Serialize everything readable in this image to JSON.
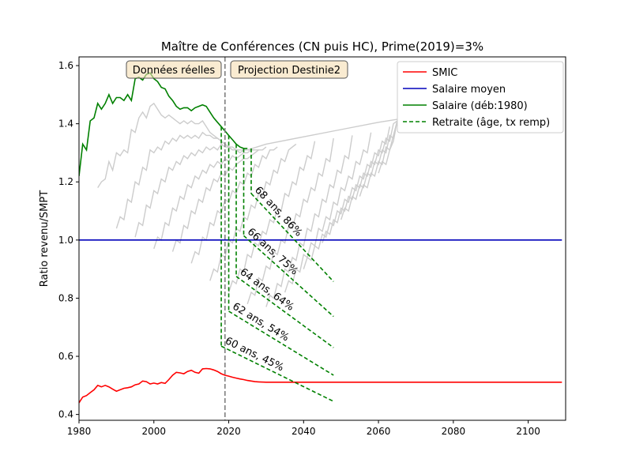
{
  "chart_data": {
    "type": "line",
    "title": "Maître de Conférences (CN puis HC), Prime(2019)=3%",
    "xlabel": "",
    "ylabel": "Ratio revenu/SMPT",
    "xlim": [
      1980,
      2110
    ],
    "ylim": [
      0.38,
      1.63
    ],
    "x_ticks": [
      1980,
      2000,
      2020,
      2040,
      2060,
      2080,
      2100
    ],
    "y_ticks": [
      0.4,
      0.6,
      0.8,
      1.0,
      1.2,
      1.4,
      1.6
    ],
    "y_tick_labels": [
      "0.4",
      "0.6",
      "0.8",
      "1.0",
      "1.2",
      "1.4",
      "1.6"
    ],
    "vline_year": 2019,
    "colors": {
      "smic": "#ff0000",
      "salaire_moyen": "#0000bb",
      "salaire": "#008000",
      "retraite": "#008000",
      "gray": "#cccccc",
      "vline": "#808080"
    },
    "annotations": {
      "left_box": "Données réelles",
      "right_box": "Projection Destinie2"
    },
    "legend": {
      "placement": "top-right",
      "entries": [
        {
          "label": "SMIC",
          "color": "#ff0000",
          "style": "solid"
        },
        {
          "label": "Salaire moyen",
          "color": "#0000bb",
          "style": "solid"
        },
        {
          "label": "Salaire (déb:1980)",
          "color": "#008000",
          "style": "solid"
        },
        {
          "label": "Retraite (âge, tx remp)",
          "color": "#008000",
          "style": "dashed"
        }
      ]
    },
    "series": [
      {
        "name": "SMIC",
        "x": [
          1980,
          1981,
          1982,
          1983,
          1984,
          1985,
          1986,
          1987,
          1988,
          1989,
          1990,
          1991,
          1992,
          1993,
          1994,
          1995,
          1996,
          1997,
          1998,
          1999,
          2000,
          2001,
          2002,
          2003,
          2004,
          2005,
          2006,
          2007,
          2008,
          2009,
          2010,
          2011,
          2012,
          2013,
          2014,
          2015,
          2016,
          2017,
          2018,
          2019,
          2020,
          2021,
          2022,
          2023,
          2024,
          2025,
          2026,
          2027,
          2028,
          2030,
          2035,
          2040,
          2050,
          2060,
          2070,
          2080,
          2090,
          2100,
          2109
        ],
        "y": [
          0.44,
          0.46,
          0.465,
          0.475,
          0.485,
          0.5,
          0.495,
          0.5,
          0.495,
          0.487,
          0.48,
          0.485,
          0.49,
          0.492,
          0.495,
          0.502,
          0.505,
          0.515,
          0.513,
          0.505,
          0.508,
          0.505,
          0.51,
          0.507,
          0.52,
          0.535,
          0.545,
          0.543,
          0.54,
          0.548,
          0.552,
          0.545,
          0.542,
          0.557,
          0.558,
          0.557,
          0.553,
          0.548,
          0.54,
          0.535,
          0.532,
          0.528,
          0.525,
          0.522,
          0.52,
          0.517,
          0.515,
          0.513,
          0.512,
          0.511,
          0.511,
          0.511,
          0.511,
          0.511,
          0.511,
          0.511,
          0.511,
          0.511,
          0.511
        ]
      },
      {
        "name": "Salaire moyen",
        "x": [
          1980,
          2109
        ],
        "y": [
          1.0,
          1.0
        ]
      },
      {
        "name": "Salaire (déb:1980)",
        "x": [
          1980,
          1981,
          1982,
          1983,
          1984,
          1985,
          1986,
          1987,
          1988,
          1989,
          1990,
          1991,
          1992,
          1993,
          1994,
          1995,
          1996,
          1997,
          1998,
          1999,
          2000,
          2001,
          2002,
          2003,
          2004,
          2005,
          2006,
          2007,
          2008,
          2009,
          2010,
          2011,
          2012,
          2013,
          2014,
          2015,
          2016,
          2017,
          2018,
          2019,
          2020,
          2021,
          2022,
          2023,
          2024,
          2025
        ],
        "y": [
          1.22,
          1.33,
          1.31,
          1.41,
          1.42,
          1.47,
          1.45,
          1.47,
          1.5,
          1.47,
          1.49,
          1.49,
          1.48,
          1.5,
          1.48,
          1.555,
          1.56,
          1.55,
          1.57,
          1.575,
          1.555,
          1.545,
          1.525,
          1.52,
          1.495,
          1.48,
          1.46,
          1.45,
          1.455,
          1.455,
          1.445,
          1.455,
          1.46,
          1.465,
          1.46,
          1.44,
          1.42,
          1.405,
          1.39,
          1.375,
          1.36,
          1.345,
          1.33,
          1.32,
          1.315,
          1.315
        ]
      }
    ],
    "gray_curves": [
      {
        "x": [
          1985,
          1986,
          1987,
          1988,
          1989,
          1990,
          1991,
          1992,
          1993,
          1994,
          1995,
          1996,
          1997,
          1998,
          1999,
          2000,
          2001,
          2002,
          2003,
          2004,
          2005,
          2006,
          2007,
          2008,
          2009,
          2010,
          2011,
          2012,
          2013,
          2014,
          2015,
          2016,
          2017,
          2018,
          2019,
          2020,
          2021,
          2022,
          2023,
          2024,
          2025,
          2030,
          2040,
          2050,
          2060,
          2065
        ],
        "y": [
          1.18,
          1.2,
          1.21,
          1.27,
          1.24,
          1.3,
          1.29,
          1.31,
          1.3,
          1.38,
          1.37,
          1.42,
          1.44,
          1.42,
          1.46,
          1.47,
          1.45,
          1.43,
          1.42,
          1.43,
          1.42,
          1.41,
          1.4,
          1.41,
          1.4,
          1.41,
          1.4,
          1.4,
          1.41,
          1.39,
          1.37,
          1.36,
          1.35,
          1.34,
          1.33,
          1.32,
          1.31,
          1.31,
          1.31,
          1.31,
          1.31,
          1.33,
          1.355,
          1.38,
          1.405,
          1.415
        ]
      },
      {
        "x": [
          1990,
          1991,
          1992,
          1993,
          1994,
          1995,
          1996,
          1997,
          1998,
          1999,
          2000,
          2001,
          2002,
          2003,
          2004,
          2005,
          2006,
          2007,
          2008,
          2009,
          2010,
          2011,
          2012,
          2013,
          2014,
          2015,
          2016,
          2017,
          2018,
          2019,
          2020,
          2021,
          2022,
          2023,
          2024,
          2025,
          2026
        ],
        "y": [
          1.04,
          1.08,
          1.07,
          1.14,
          1.13,
          1.2,
          1.19,
          1.25,
          1.24,
          1.31,
          1.3,
          1.32,
          1.31,
          1.34,
          1.33,
          1.35,
          1.34,
          1.36,
          1.35,
          1.36,
          1.35,
          1.36,
          1.35,
          1.37,
          1.36,
          1.36,
          1.35,
          1.35,
          1.34,
          1.33,
          1.32,
          1.32,
          1.31,
          1.31,
          1.31,
          1.31,
          1.31
        ]
      },
      {
        "x": [
          1995,
          1996,
          1997,
          1998,
          1999,
          2000,
          2001,
          2002,
          2003,
          2004,
          2005,
          2006,
          2007,
          2008,
          2009,
          2010,
          2011,
          2012,
          2013,
          2014,
          2015,
          2016,
          2017,
          2018,
          2019,
          2020,
          2021,
          2022,
          2023,
          2024,
          2025,
          2026,
          2027
        ],
        "y": [
          1.01,
          1.06,
          1.05,
          1.12,
          1.11,
          1.17,
          1.16,
          1.21,
          1.2,
          1.25,
          1.24,
          1.27,
          1.26,
          1.29,
          1.28,
          1.3,
          1.29,
          1.31,
          1.3,
          1.32,
          1.31,
          1.32,
          1.31,
          1.33,
          1.32,
          1.32,
          1.31,
          1.31,
          1.3,
          1.31,
          1.31,
          1.31,
          1.31
        ]
      },
      {
        "x": [
          2000,
          2001,
          2002,
          2003,
          2004,
          2005,
          2006,
          2007,
          2008,
          2009,
          2010,
          2011,
          2012,
          2013,
          2014,
          2015,
          2016,
          2017,
          2018,
          2019,
          2020,
          2021,
          2022,
          2023,
          2024,
          2025,
          2026,
          2027,
          2028
        ],
        "y": [
          0.97,
          1.01,
          1.0,
          1.06,
          1.05,
          1.11,
          1.1,
          1.15,
          1.14,
          1.19,
          1.18,
          1.22,
          1.21,
          1.24,
          1.23,
          1.26,
          1.25,
          1.27,
          1.26,
          1.28,
          1.27,
          1.29,
          1.28,
          1.29,
          1.3,
          1.3,
          1.31,
          1.31,
          1.31
        ]
      },
      {
        "x": [
          2005,
          2006,
          2007,
          2008,
          2009,
          2010,
          2011,
          2012,
          2013,
          2014,
          2015,
          2016,
          2017,
          2018,
          2019,
          2020,
          2021,
          2022,
          2023,
          2024,
          2025,
          2026,
          2027,
          2028,
          2029,
          2030
        ],
        "y": [
          0.96,
          1.0,
          0.99,
          1.05,
          1.04,
          1.1,
          1.09,
          1.14,
          1.13,
          1.18,
          1.17,
          1.21,
          1.2,
          1.23,
          1.22,
          1.25,
          1.24,
          1.26,
          1.27,
          1.28,
          1.28,
          1.29,
          1.3,
          1.31,
          1.31,
          1.32
        ]
      },
      {
        "x": [
          2010,
          2011,
          2012,
          2013,
          2014,
          2015,
          2016,
          2017,
          2018,
          2019,
          2020,
          2021,
          2022,
          2023,
          2024,
          2025,
          2026,
          2027,
          2028,
          2029,
          2030,
          2031,
          2032,
          2033
        ],
        "y": [
          0.92,
          0.96,
          0.95,
          1.01,
          1.0,
          1.06,
          1.05,
          1.1,
          1.09,
          1.14,
          1.13,
          1.17,
          1.16,
          1.2,
          1.19,
          1.23,
          1.22,
          1.26,
          1.25,
          1.29,
          1.28,
          1.31,
          1.31,
          1.32
        ]
      },
      {
        "x": [
          2015,
          2016,
          2017,
          2018,
          2019,
          2020,
          2021,
          2022,
          2023,
          2024,
          2025,
          2026,
          2027,
          2028,
          2029,
          2030,
          2031,
          2032,
          2033,
          2034,
          2035,
          2036,
          2037,
          2038
        ],
        "y": [
          0.86,
          0.9,
          0.89,
          0.95,
          0.94,
          1.0,
          0.99,
          1.04,
          1.03,
          1.08,
          1.07,
          1.12,
          1.11,
          1.16,
          1.15,
          1.2,
          1.19,
          1.24,
          1.23,
          1.28,
          1.27,
          1.31,
          1.32,
          1.33
        ]
      },
      {
        "x": [
          2020,
          2021,
          2022,
          2023,
          2024,
          2025,
          2026,
          2027,
          2028,
          2029,
          2030,
          2031,
          2032,
          2033,
          2034,
          2035,
          2036,
          2037,
          2038,
          2039,
          2040,
          2041,
          2042,
          2043
        ],
        "y": [
          0.82,
          0.86,
          0.85,
          0.9,
          0.89,
          0.95,
          0.94,
          0.99,
          0.98,
          1.03,
          1.02,
          1.07,
          1.06,
          1.11,
          1.1,
          1.16,
          1.15,
          1.2,
          1.19,
          1.25,
          1.24,
          1.29,
          1.28,
          1.34
        ]
      },
      {
        "x": [
          2025,
          2026,
          2027,
          2028,
          2029,
          2030,
          2031,
          2032,
          2033,
          2034,
          2035,
          2036,
          2037,
          2038,
          2039,
          2040,
          2041,
          2042,
          2043,
          2044,
          2045,
          2046,
          2047,
          2048
        ],
        "y": [
          0.78,
          0.82,
          0.81,
          0.87,
          0.86,
          0.91,
          0.9,
          0.96,
          0.95,
          1.0,
          0.99,
          1.05,
          1.04,
          1.09,
          1.08,
          1.14,
          1.13,
          1.18,
          1.17,
          1.23,
          1.22,
          1.28,
          1.27,
          1.35
        ]
      },
      {
        "x": [
          2030,
          2031,
          2032,
          2033,
          2034,
          2035,
          2036,
          2037,
          2038,
          2039,
          2040,
          2041,
          2042,
          2043,
          2044,
          2045,
          2046,
          2047,
          2048,
          2049,
          2050,
          2051,
          2052,
          2053
        ],
        "y": [
          0.77,
          0.81,
          0.8,
          0.85,
          0.84,
          0.9,
          0.89,
          0.94,
          0.93,
          0.99,
          0.98,
          1.04,
          1.03,
          1.09,
          1.08,
          1.14,
          1.13,
          1.19,
          1.18,
          1.24,
          1.23,
          1.29,
          1.28,
          1.36
        ]
      },
      {
        "x": [
          2035,
          2036,
          2037,
          2038,
          2039,
          2040,
          2041,
          2042,
          2043,
          2044,
          2045,
          2046,
          2047,
          2048,
          2049,
          2050,
          2051,
          2052,
          2053,
          2054,
          2055,
          2056,
          2057,
          2058
        ],
        "y": [
          0.82,
          0.86,
          0.85,
          0.9,
          0.89,
          0.95,
          0.94,
          0.99,
          0.98,
          1.04,
          1.03,
          1.08,
          1.07,
          1.13,
          1.12,
          1.18,
          1.17,
          1.22,
          1.21,
          1.27,
          1.26,
          1.31,
          1.3,
          1.37
        ]
      },
      {
        "x": [
          2040,
          2041,
          2042,
          2043,
          2044,
          2045,
          2046,
          2047,
          2048,
          2049,
          2050,
          2051,
          2052,
          2053,
          2054,
          2055,
          2056,
          2057,
          2058,
          2059,
          2060,
          2061,
          2062,
          2063
        ],
        "y": [
          0.9,
          0.94,
          0.93,
          0.98,
          0.97,
          1.02,
          1.01,
          1.06,
          1.05,
          1.1,
          1.09,
          1.14,
          1.13,
          1.18,
          1.17,
          1.22,
          1.21,
          1.26,
          1.25,
          1.3,
          1.29,
          1.34,
          1.33,
          1.39
        ]
      },
      {
        "x": [
          2045,
          2046,
          2047,
          2048,
          2049,
          2050,
          2051,
          2052,
          2053,
          2054,
          2055,
          2056,
          2057,
          2058,
          2059,
          2060,
          2061,
          2062,
          2063,
          2064,
          2065
        ],
        "y": [
          0.99,
          1.03,
          1.02,
          1.07,
          1.06,
          1.11,
          1.1,
          1.15,
          1.14,
          1.19,
          1.18,
          1.23,
          1.22,
          1.27,
          1.26,
          1.31,
          1.3,
          1.35,
          1.34,
          1.4,
          1.41
        ]
      },
      {
        "x": [
          2050,
          2051,
          2052,
          2053,
          2054,
          2055,
          2056,
          2057,
          2058,
          2059,
          2060,
          2061,
          2062,
          2063,
          2064,
          2065
        ],
        "y": [
          1.07,
          1.11,
          1.1,
          1.15,
          1.14,
          1.19,
          1.18,
          1.23,
          1.22,
          1.27,
          1.26,
          1.31,
          1.3,
          1.36,
          1.35,
          1.41
        ]
      },
      {
        "x": [
          2055,
          2056,
          2057,
          2058,
          2059,
          2060,
          2061,
          2062,
          2063,
          2064,
          2065
        ],
        "y": [
          1.15,
          1.19,
          1.18,
          1.23,
          1.22,
          1.27,
          1.26,
          1.32,
          1.31,
          1.36,
          1.41
        ]
      },
      {
        "x": [
          2060,
          2061,
          2062,
          2063,
          2064,
          2065
        ],
        "y": [
          1.23,
          1.27,
          1.26,
          1.31,
          1.34,
          1.41
        ]
      }
    ],
    "retraites": [
      {
        "age": 60,
        "x_start": 2018,
        "y_top": 1.39,
        "y_start": 0.635,
        "x_end": 2048,
        "y_end": 0.445,
        "label": "60 ans, 45%"
      },
      {
        "age": 62,
        "x_start": 2020,
        "y_top": 1.36,
        "y_start": 0.755,
        "x_end": 2048,
        "y_end": 0.535,
        "label": "62 ans, 54%"
      },
      {
        "age": 64,
        "x_start": 2022,
        "y_top": 1.33,
        "y_start": 0.875,
        "x_end": 2048,
        "y_end": 0.63,
        "label": "64 ans, 64%"
      },
      {
        "age": 66,
        "x_start": 2024,
        "y_top": 1.315,
        "y_start": 1.015,
        "x_end": 2048,
        "y_end": 0.737,
        "label": "66 ans, 75%"
      },
      {
        "age": 68,
        "x_start": 2026,
        "y_top": 1.315,
        "y_start": 1.16,
        "x_end": 2048,
        "y_end": 0.857,
        "label": "68 ans, 86%"
      }
    ]
  }
}
